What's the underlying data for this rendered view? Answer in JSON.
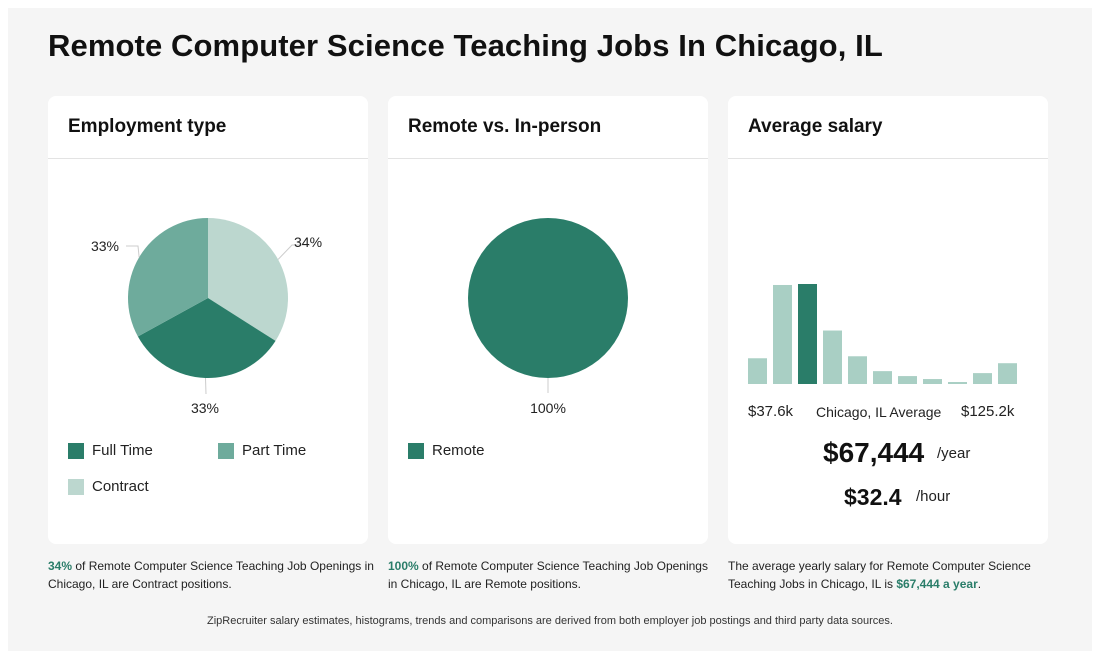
{
  "page": {
    "title": "Remote Computer Science Teaching Jobs In Chicago, IL",
    "footer": "ZipRecruiter salary estimates, histograms, trends and comparisons are derived from both employer job postings and third party data sources."
  },
  "colors": {
    "full_time": "#2a7d69",
    "part_time": "#6eab9c",
    "contract": "#bcd7cf",
    "remote": "#2a7d69",
    "bar_light": "#a9cfc4",
    "bar_highlight": "#2a7d69",
    "accent_text": "#2a7d69"
  },
  "cards": {
    "employment": {
      "title": "Employment type",
      "legend": [
        {
          "label": "Full Time",
          "color": "#2a7d69"
        },
        {
          "label": "Part Time",
          "color": "#6eab9c"
        },
        {
          "label": "Contract",
          "color": "#bcd7cf"
        }
      ],
      "caption": {
        "highlight": "34%",
        "text": " of Remote Computer Science Teaching Job Openings in Chicago, IL are Contract positions."
      }
    },
    "remote": {
      "title": "Remote vs. In-person",
      "legend": [
        {
          "label": "Remote",
          "color": "#2a7d69"
        }
      ],
      "caption": {
        "highlight": "100%",
        "text": " of Remote Computer Science Teaching Job Openings in Chicago, IL are Remote positions."
      }
    },
    "salary": {
      "title": "Average salary",
      "min_label": "$37.6k",
      "avg_label": "Chicago, IL Average",
      "max_label": "$125.2k",
      "yearly": "$67,444",
      "yearly_unit": "/year",
      "hourly": "$32.4",
      "hourly_unit": "/hour",
      "caption": {
        "text": "The average yearly salary for Remote Computer Science Teaching Jobs in Chicago, IL is ",
        "highlight": "$67,444 a year",
        "end": "."
      }
    }
  },
  "chart_data": [
    {
      "type": "pie",
      "title": "Employment type",
      "slices": [
        {
          "label": "Contract",
          "value": 34,
          "display": "34%",
          "color": "#bcd7cf"
        },
        {
          "label": "Full Time",
          "value": 33,
          "display": "33%",
          "color": "#2a7d69"
        },
        {
          "label": "Part Time",
          "value": 33,
          "display": "33%",
          "color": "#6eab9c"
        }
      ]
    },
    {
      "type": "pie",
      "title": "Remote vs. In-person",
      "slices": [
        {
          "label": "Remote",
          "value": 100,
          "display": "100%",
          "color": "#2a7d69"
        }
      ]
    },
    {
      "type": "bar",
      "title": "Average salary",
      "x_range_labels": [
        "$37.6k",
        "$125.2k"
      ],
      "values": [
        26,
        100,
        101,
        54,
        28,
        13,
        8,
        5,
        2,
        11,
        21
      ],
      "highlight_index": 2,
      "ylim": [
        0,
        101
      ]
    }
  ]
}
